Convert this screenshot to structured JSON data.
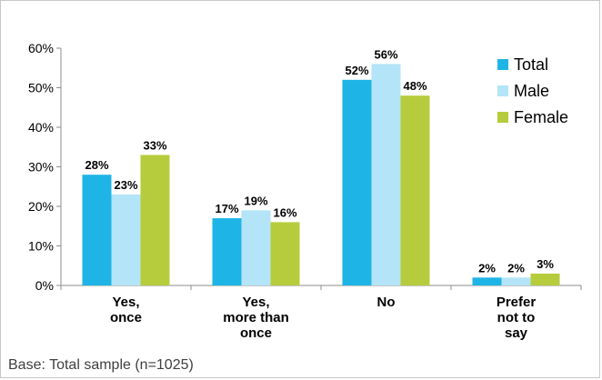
{
  "chart_data": {
    "type": "bar",
    "categories": [
      "Yes,\nonce",
      "Yes,\nmore than\nonce",
      "No",
      "Prefer\nnot to\nsay"
    ],
    "series": [
      {
        "name": "Total",
        "values": [
          28,
          17,
          52,
          2
        ],
        "labels": [
          "28%",
          "17%",
          "52%",
          "2%"
        ],
        "color": "#1fb4e6"
      },
      {
        "name": "Male",
        "values": [
          23,
          19,
          56,
          2
        ],
        "labels": [
          "23%",
          "19%",
          "56%",
          "2%"
        ],
        "color": "#b3e4f7"
      },
      {
        "name": "Female",
        "values": [
          33,
          16,
          48,
          3
        ],
        "labels": [
          "33%",
          "16%",
          "48%",
          "3%"
        ],
        "color": "#b7cc3c"
      }
    ],
    "yticks": [
      "0%",
      "10%",
      "20%",
      "30%",
      "40%",
      "50%",
      "60%"
    ],
    "ylim": [
      0,
      60
    ],
    "legend_position": "top-right",
    "grid": false
  },
  "footnote": "Base: Total sample (n=1025)"
}
